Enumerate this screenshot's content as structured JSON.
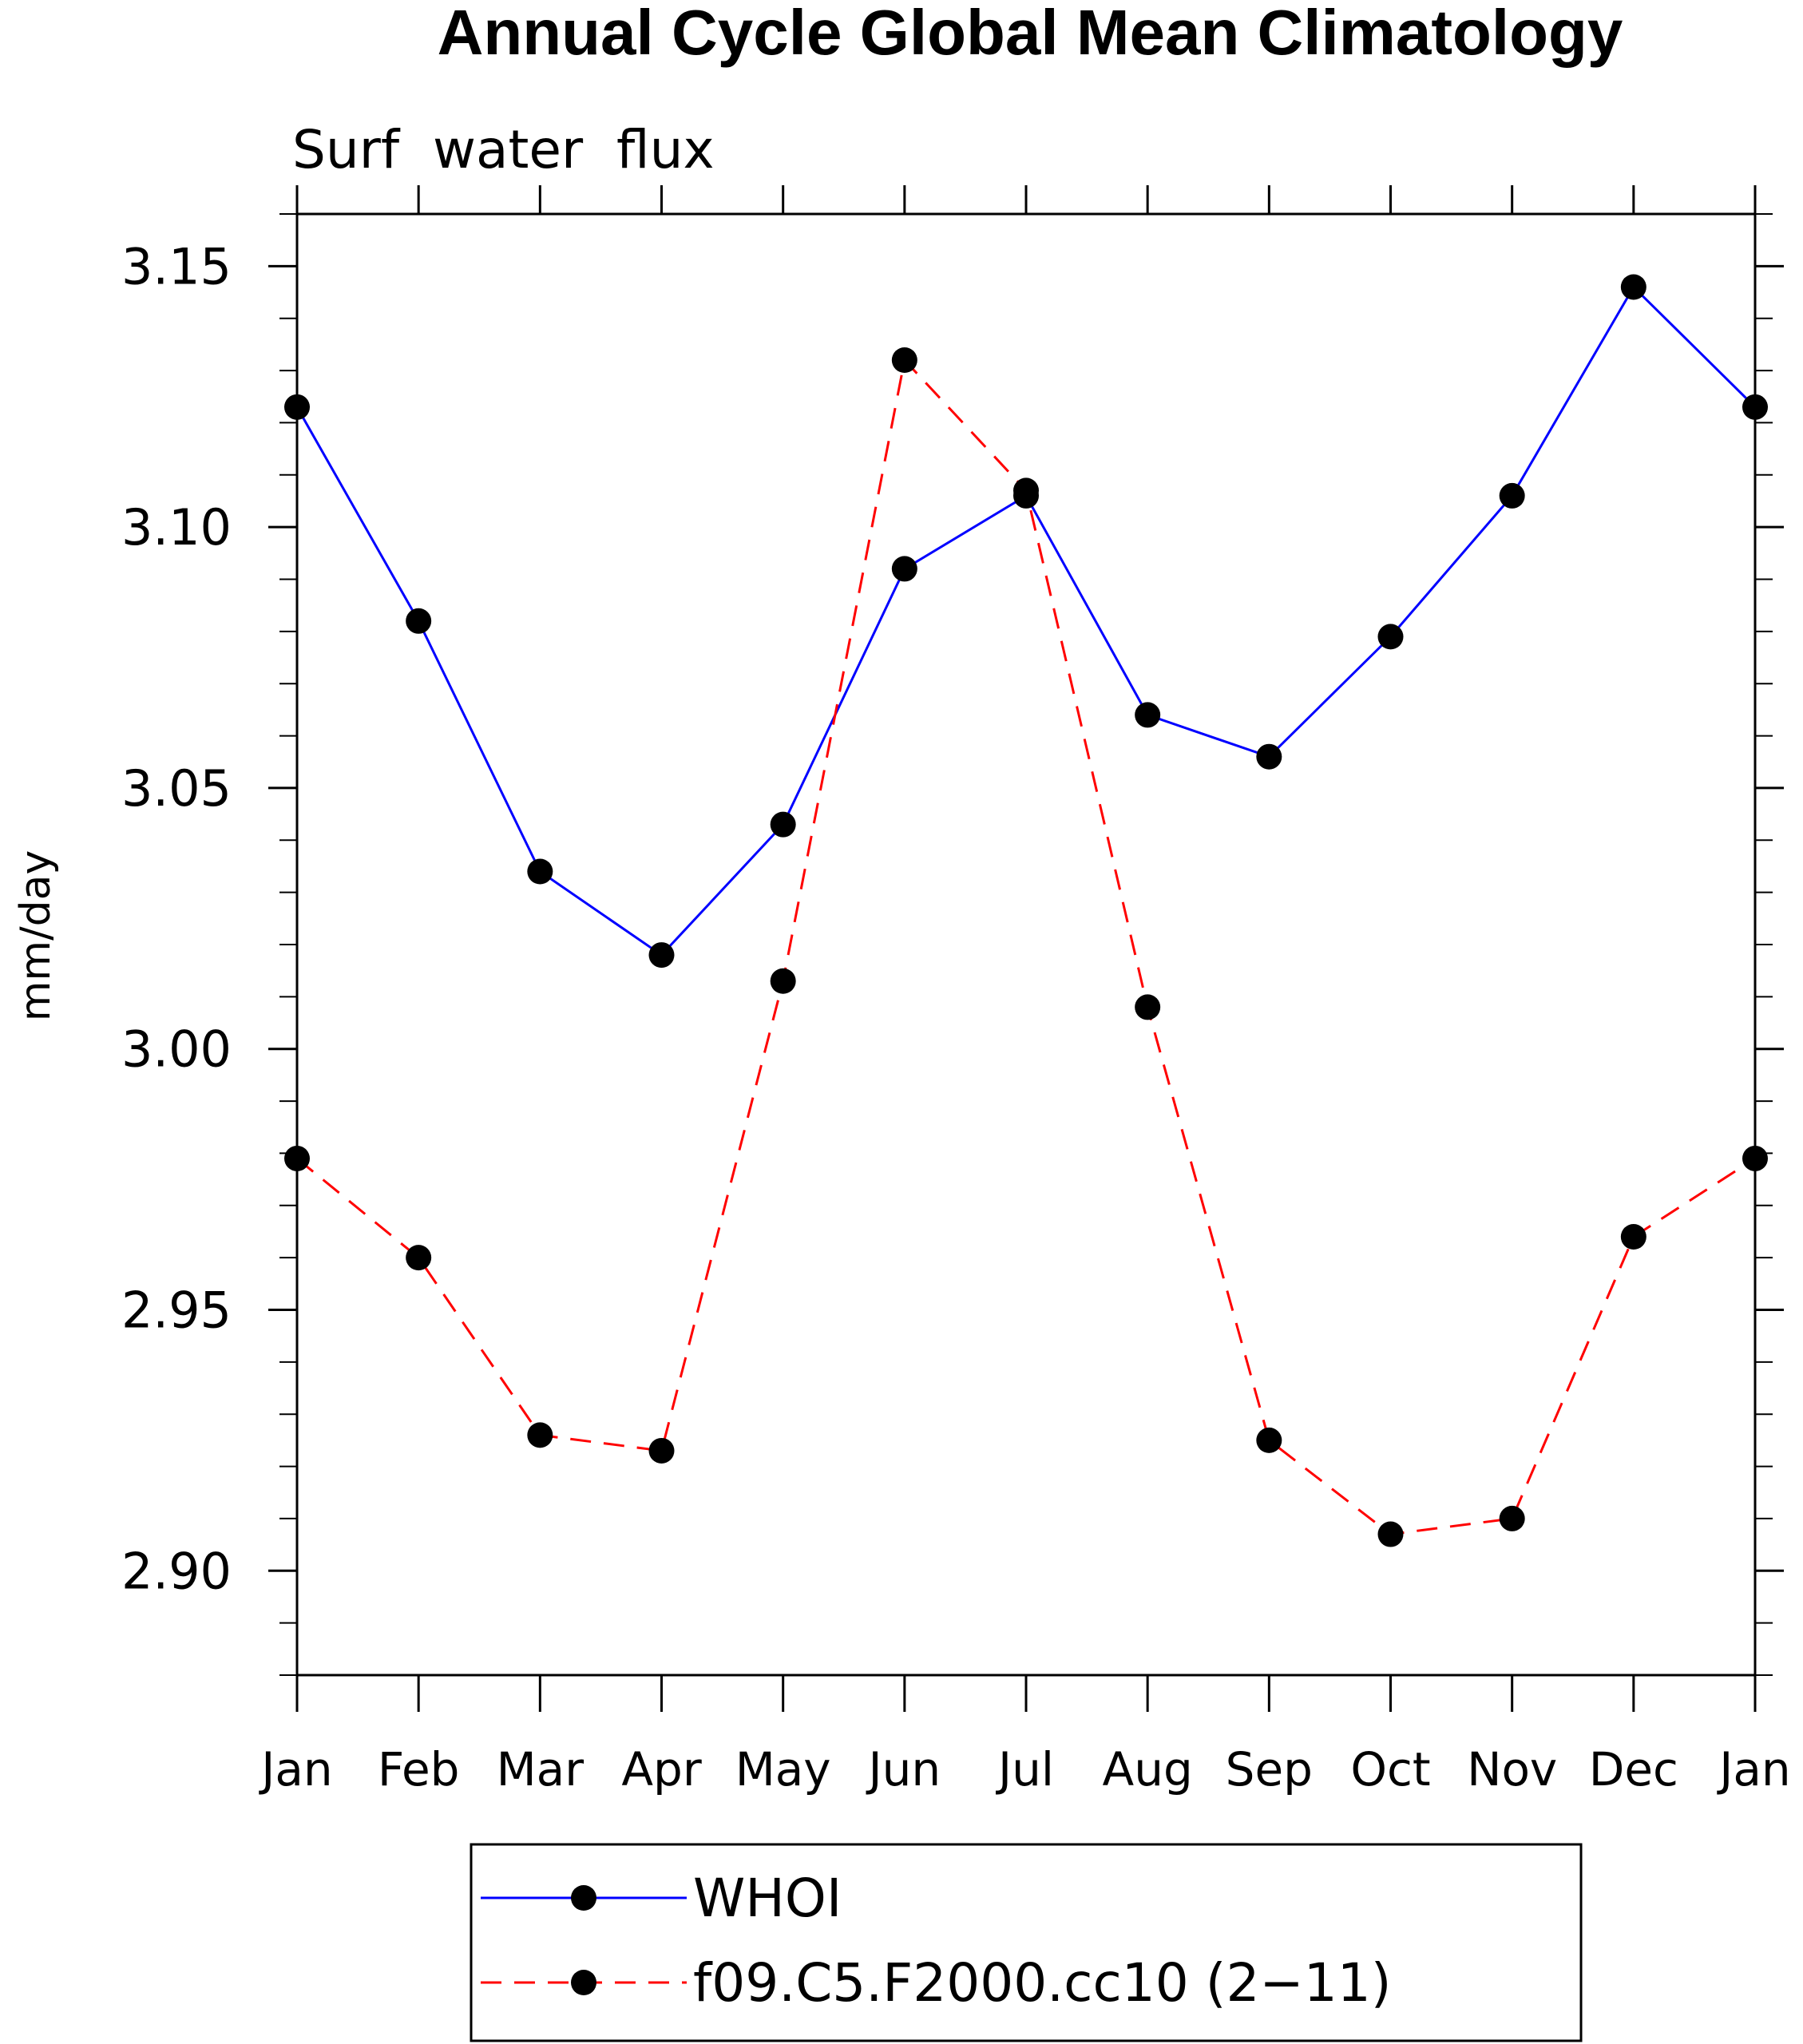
{
  "chart_data": {
    "type": "line",
    "title": "Annual Cycle Global Mean Climatology",
    "subtitle": "Surf  water  flux",
    "xlabel": "",
    "ylabel": "mm/day",
    "categories": [
      "Jan",
      "Feb",
      "Mar",
      "Apr",
      "May",
      "Jun",
      "Jul",
      "Aug",
      "Sep",
      "Oct",
      "Nov",
      "Dec",
      "Jan"
    ],
    "ylim": [
      2.88,
      3.16
    ],
    "yticks": [
      "2.90",
      "2.95",
      "3.00",
      "3.05",
      "3.10",
      "3.15"
    ],
    "grid": false,
    "legend_position": "bottom",
    "series": [
      {
        "name": "WHOI",
        "color": "#0000ff",
        "dashed": false,
        "values": [
          3.123,
          3.082,
          3.034,
          3.018,
          3.043,
          3.092,
          3.106,
          3.064,
          3.056,
          3.079,
          3.106,
          3.146,
          3.123
        ]
      },
      {
        "name": "f09.C5.F2000.cc10 (2−11)",
        "color": "#ff0000",
        "dashed": true,
        "values": [
          2.979,
          2.96,
          2.926,
          2.923,
          3.013,
          3.132,
          3.107,
          3.008,
          2.925,
          2.907,
          2.91,
          2.964,
          2.979
        ]
      }
    ]
  }
}
